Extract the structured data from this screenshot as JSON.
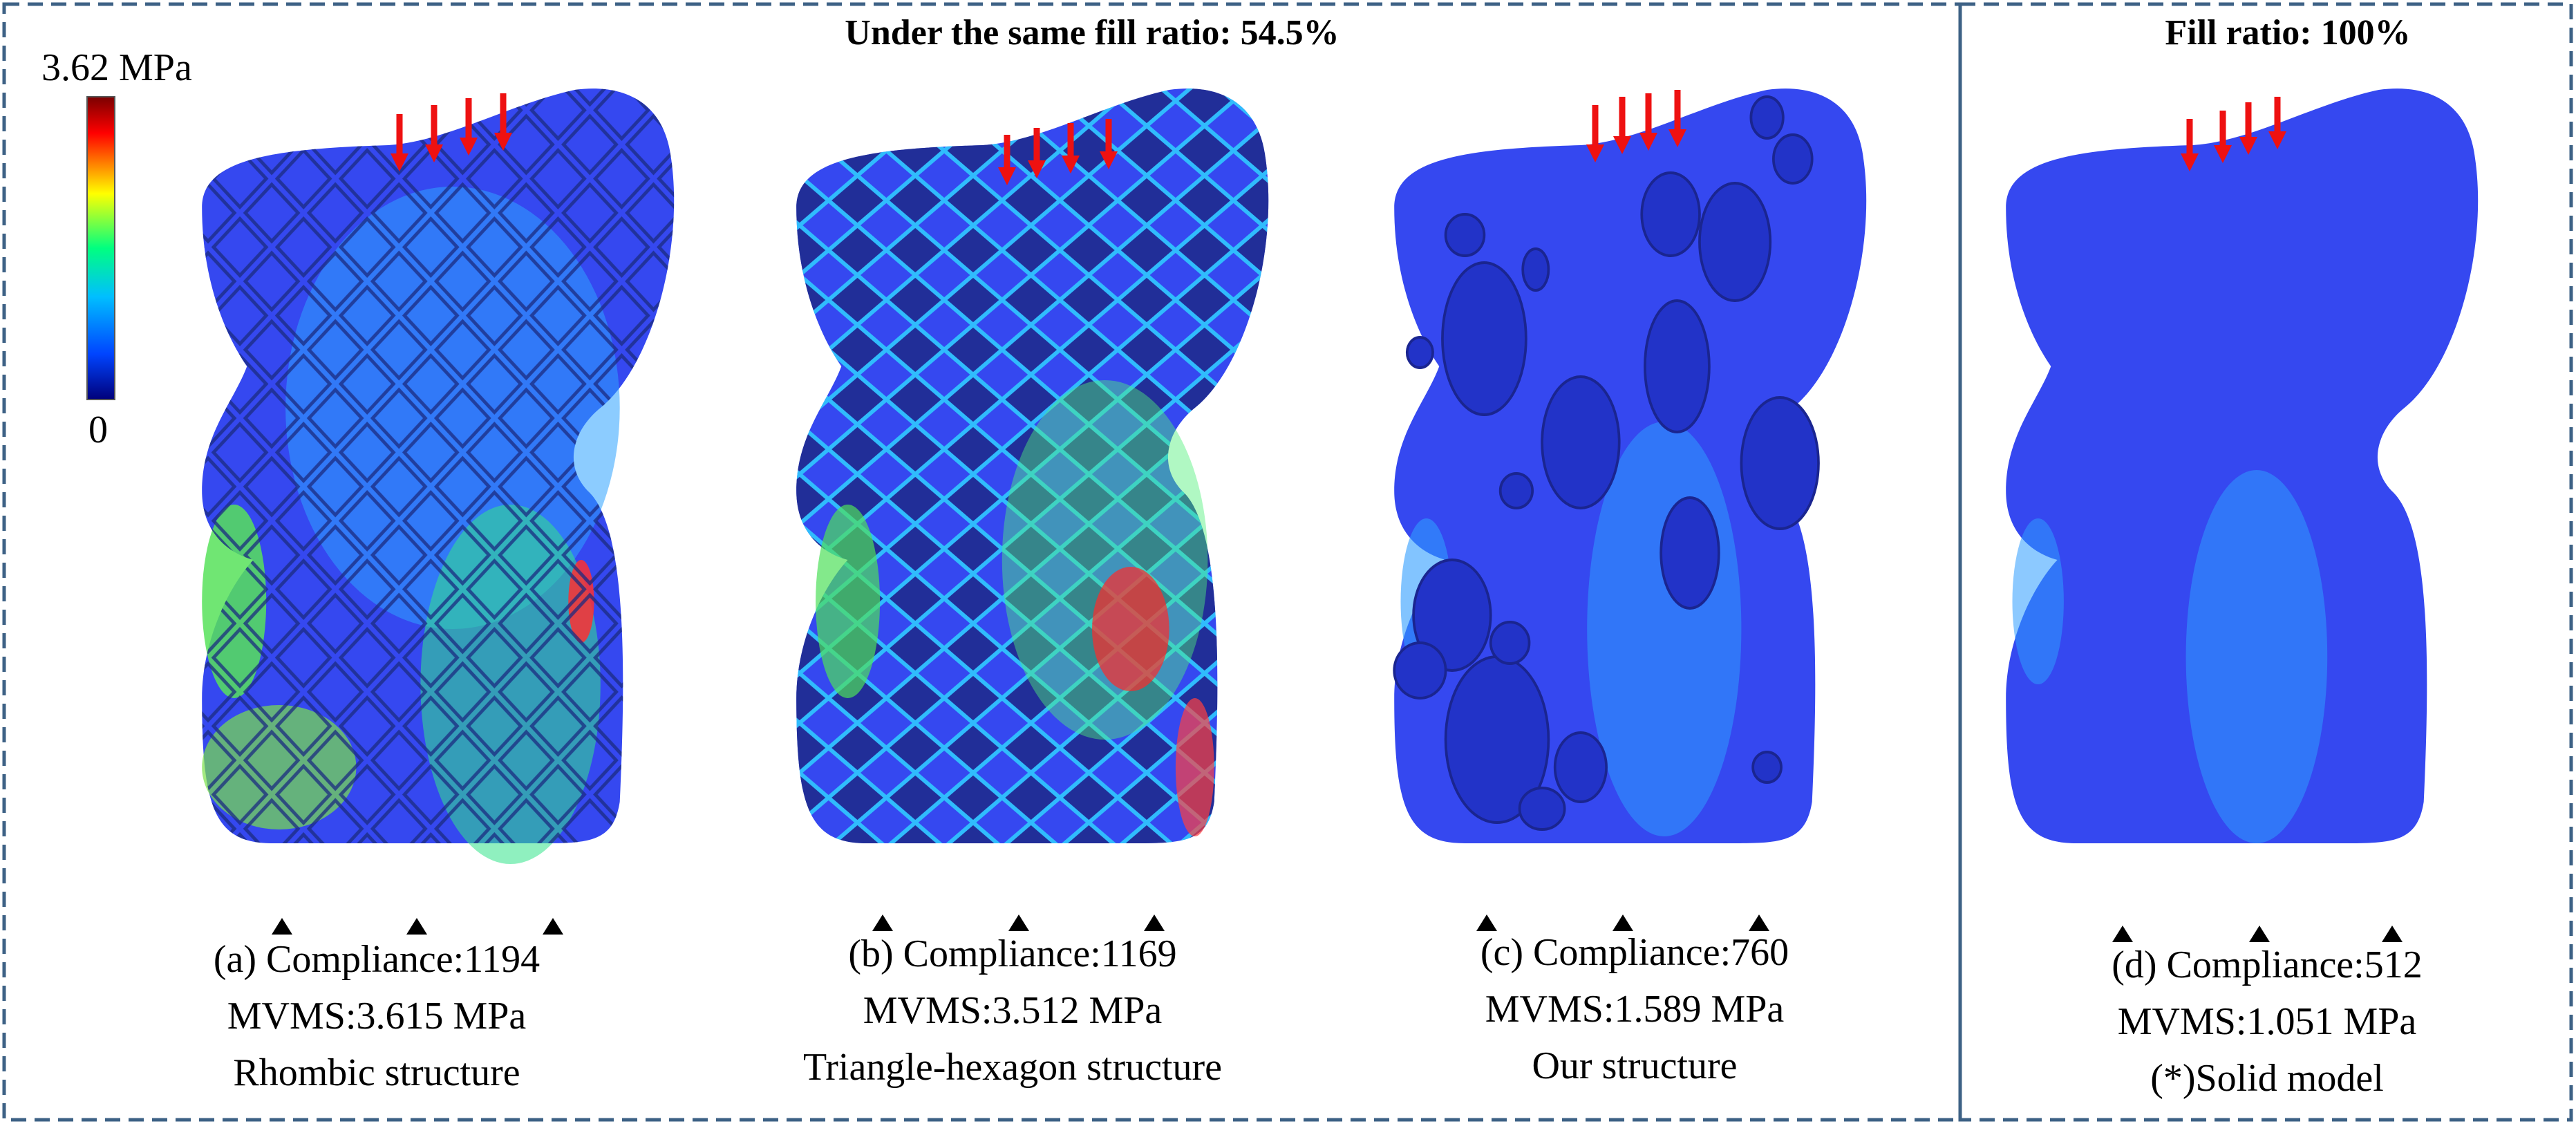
{
  "figure": {
    "group_headings": {
      "left": "Under the same fill ratio: 54.5%",
      "right": "Fill ratio: 100%"
    },
    "color_scale": {
      "max_label": "3.62 MPa",
      "min_label": "0",
      "max_value_mpa": 3.62,
      "min_value_mpa": 0,
      "colors": [
        "#7a0000",
        "#ff0000",
        "#ffff00",
        "#00ff80",
        "#00bfff",
        "#0044ff",
        "#00007a"
      ]
    },
    "panels": [
      {
        "id": "a",
        "line1": "(a) Compliance:1194",
        "line2": "MVMS:3.615 MPa",
        "line3": "Rhombic structure",
        "compliance": 1194,
        "mvms_mpa": 3.615
      },
      {
        "id": "b",
        "line1": "(b) Compliance:1169",
        "line2": "MVMS:3.512 MPa",
        "line3": "Triangle-hexagon structure",
        "compliance": 1169,
        "mvms_mpa": 3.512
      },
      {
        "id": "c",
        "line1": "(c) Compliance:760",
        "line2": "MVMS:1.589 MPa",
        "line3": "Our structure",
        "compliance": 760,
        "mvms_mpa": 1.589
      },
      {
        "id": "d",
        "line1": "(d) Compliance:512",
        "line2": "MVMS:1.051 MPa",
        "line3": "(*)Solid model",
        "compliance": 512,
        "mvms_mpa": 1.051
      }
    ],
    "colors": {
      "frame": "#3d6185",
      "model_base": "#3548f0",
      "model_dark": "#2233c8",
      "load_arrow": "#ee1111",
      "support": "#000000"
    }
  }
}
